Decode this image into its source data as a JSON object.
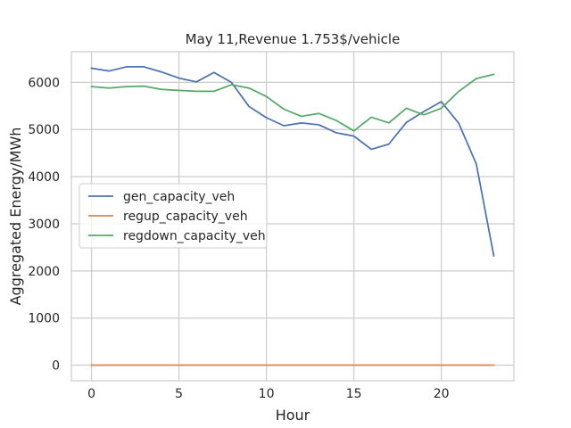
{
  "chart_data": {
    "type": "line",
    "title": "May 11,Revenue 1.753$/vehicle",
    "xlabel": "Hour",
    "ylabel": "Aggregated Energy/MWh",
    "xlim": [
      -1.15,
      24.15
    ],
    "ylim": [
      -330,
      6650
    ],
    "xticks": [
      0,
      5,
      10,
      15,
      20
    ],
    "yticks": [
      0,
      1000,
      2000,
      3000,
      4000,
      5000,
      6000
    ],
    "grid": true,
    "legend_position": "center-left",
    "x": [
      0,
      1,
      2,
      3,
      4,
      5,
      6,
      7,
      8,
      9,
      10,
      11,
      12,
      13,
      14,
      15,
      16,
      17,
      18,
      19,
      20,
      21,
      22,
      23
    ],
    "series": [
      {
        "name": "gen_capacity_veh",
        "color": "#4c72b0",
        "values": [
          6300,
          6240,
          6330,
          6330,
          6220,
          6090,
          6010,
          6210,
          6000,
          5490,
          5250,
          5080,
          5140,
          5100,
          4930,
          4860,
          4580,
          4690,
          5150,
          5380,
          5590,
          5130,
          4270,
          2320
        ]
      },
      {
        "name": "regup_capacity_veh",
        "color": "#dd8452",
        "values": [
          0,
          0,
          0,
          0,
          0,
          0,
          0,
          0,
          0,
          0,
          0,
          0,
          0,
          0,
          0,
          0,
          0,
          0,
          0,
          0,
          0,
          0,
          0,
          0
        ]
      },
      {
        "name": "regdown_capacity_veh",
        "color": "#55a868",
        "values": [
          5910,
          5880,
          5910,
          5920,
          5850,
          5830,
          5810,
          5810,
          5950,
          5880,
          5700,
          5430,
          5280,
          5340,
          5190,
          4970,
          5260,
          5140,
          5450,
          5310,
          5450,
          5810,
          6080,
          6170
        ]
      }
    ]
  }
}
